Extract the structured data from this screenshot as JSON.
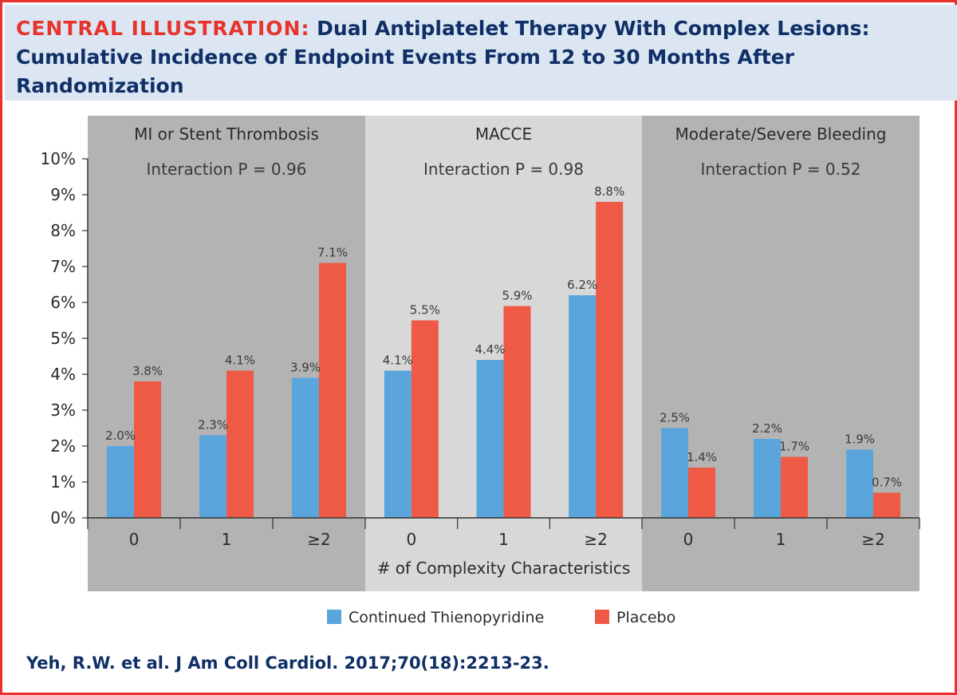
{
  "header": {
    "title_lead": "CENTRAL ILLUSTRATION:",
    "title_rest": "Dual Antiplatelet Therapy With Complex Lesions: Cumulative Incidence of Endpoint Events From 12 to 30 Months After Randomization"
  },
  "citation": "Yeh, R.W. et al. J Am Coll Cardiol. 2017;70(18):2213-23.",
  "chart_data": {
    "type": "bar",
    "title": "Dual Antiplatelet Therapy With Complex Lesions: Cumulative Incidence of Endpoint Events From 12 to 30 Months After Randomization",
    "xlabel": "# of Complexity Characteristics",
    "ylabel": "",
    "ylim": [
      0,
      10
    ],
    "y_ticks": [
      "0%",
      "1%",
      "2%",
      "3%",
      "4%",
      "5%",
      "6%",
      "7%",
      "8%",
      "9%",
      "10%"
    ],
    "categories": [
      "0",
      "1",
      "≥2"
    ],
    "legend_position": "bottom-center",
    "series": [
      {
        "name": "Continued Thienopyridine",
        "color": "#5aa5dc"
      },
      {
        "name": "Placebo",
        "color": "#ee5a45"
      }
    ],
    "panels": [
      {
        "name": "MI or Stent Thrombosis",
        "interaction": "Interaction P = 0.96",
        "background": "#b3b3b3",
        "values": [
          [
            2.0,
            3.8
          ],
          [
            2.3,
            4.1
          ],
          [
            3.9,
            7.1
          ]
        ],
        "labels": [
          [
            "2.0%",
            "3.8%"
          ],
          [
            "2.3%",
            "4.1%"
          ],
          [
            "3.9%",
            "7.1%"
          ]
        ]
      },
      {
        "name": "MACCE",
        "interaction": "Interaction P = 0.98",
        "background": "#d8d8d8",
        "values": [
          [
            4.1,
            5.5
          ],
          [
            4.4,
            5.9
          ],
          [
            6.2,
            8.8
          ]
        ],
        "labels": [
          [
            "4.1%",
            "5.5%"
          ],
          [
            "4.4%",
            "5.9%"
          ],
          [
            "6.2%",
            "8.8%"
          ]
        ]
      },
      {
        "name": "Moderate/Severe Bleeding",
        "interaction": "Interaction P = 0.52",
        "background": "#b3b3b3",
        "values": [
          [
            2.5,
            1.4
          ],
          [
            2.2,
            1.7
          ],
          [
            1.9,
            0.7
          ]
        ],
        "labels": [
          [
            "2.5%",
            "1.4%"
          ],
          [
            "2.2%",
            "1.7%"
          ],
          [
            "1.9%",
            "0.7%"
          ]
        ]
      }
    ]
  }
}
